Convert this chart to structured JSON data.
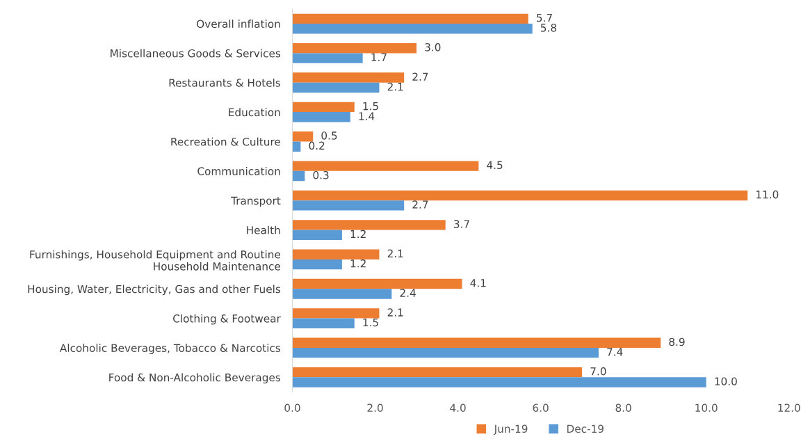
{
  "chart_data": {
    "type": "bar",
    "orientation": "horizontal",
    "categories": [
      "Overall inflation",
      "Miscellaneous Goods & Services",
      "Restaurants & Hotels",
      "Education",
      "Recreation & Culture",
      "Communication",
      "Transport",
      "Health",
      "Furnishings, Household Equipment and Routine\nHousehold Maintenance",
      "Housing, Water, Electricity, Gas and other Fuels",
      "Clothing & Footwear",
      "Alcoholic Beverages, Tobacco & Narcotics",
      "Food & Non-Alcoholic Beverages"
    ],
    "series": [
      {
        "name": "Jun-19",
        "color": "#ed7d31",
        "values": [
          5.7,
          3.0,
          2.7,
          1.5,
          0.5,
          4.5,
          11.0,
          3.7,
          2.1,
          4.1,
          2.1,
          8.9,
          7.0
        ],
        "value_labels": [
          "5.7",
          "3.0",
          "2.7",
          "1.5",
          "0.5",
          "4.5",
          "11.0",
          "3.7",
          "2.1",
          "4.1",
          "2.1",
          "8.9",
          "7.0"
        ]
      },
      {
        "name": "Dec-19",
        "color": "#5b9bd5",
        "values": [
          5.8,
          1.7,
          2.1,
          1.4,
          0.2,
          0.3,
          2.7,
          1.2,
          1.2,
          2.4,
          1.5,
          7.4,
          10.0
        ],
        "value_labels": [
          "5.8",
          "1.7",
          "2.1",
          "1.4",
          "0.2",
          "0.3",
          "2.7",
          "1.2",
          "1.2",
          "2.4",
          "1.5",
          "7.4",
          "10.0"
        ]
      }
    ],
    "xlim": [
      0,
      12
    ],
    "xticks": [
      {
        "value": 0,
        "label": "0.0"
      },
      {
        "value": 2,
        "label": "2.0"
      },
      {
        "value": 4,
        "label": "4.0"
      },
      {
        "value": 6,
        "label": "6.0"
      },
      {
        "value": 8,
        "label": "8.0"
      },
      {
        "value": 10,
        "label": "10.0"
      },
      {
        "value": 12,
        "label": "12.0"
      }
    ],
    "grid": false,
    "legend": "bottom"
  }
}
